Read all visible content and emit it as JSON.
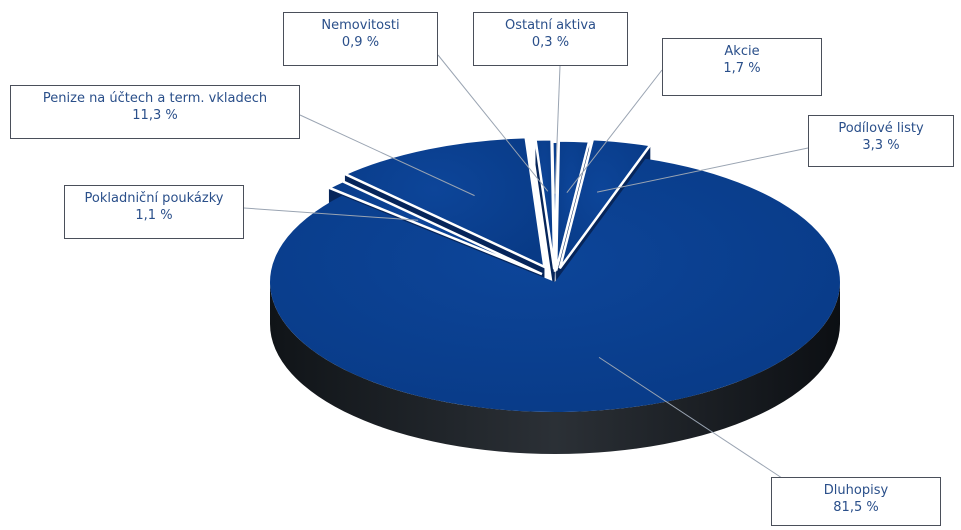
{
  "chart_data": {
    "type": "pie",
    "style": "3d-exploded",
    "colors": {
      "slice": "#0a3d8c",
      "slice_dark": "#06255a",
      "label_text": "#2a4f8a",
      "label_border": "#4a4f5a"
    },
    "slices": [
      {
        "label": "Dluhopisy",
        "value_text": "81,5 %",
        "value": 81.5
      },
      {
        "label": "Pokladniční poukázky",
        "value_text": "1,1 %",
        "value": 1.1
      },
      {
        "label": "Penize na účtech a term. vkladech",
        "value_text": "11,3 %",
        "value": 11.3
      },
      {
        "label": "Nemovitosti",
        "value_text": "0,9 %",
        "value": 0.9
      },
      {
        "label": "Ostatní aktiva",
        "value_text": "0,3 %",
        "value": 0.3
      },
      {
        "label": "Akcie",
        "value_text": "1,7 %",
        "value": 1.7
      },
      {
        "label": "Podílové listy",
        "value_text": "3,3 %",
        "value": 3.3
      }
    ]
  }
}
